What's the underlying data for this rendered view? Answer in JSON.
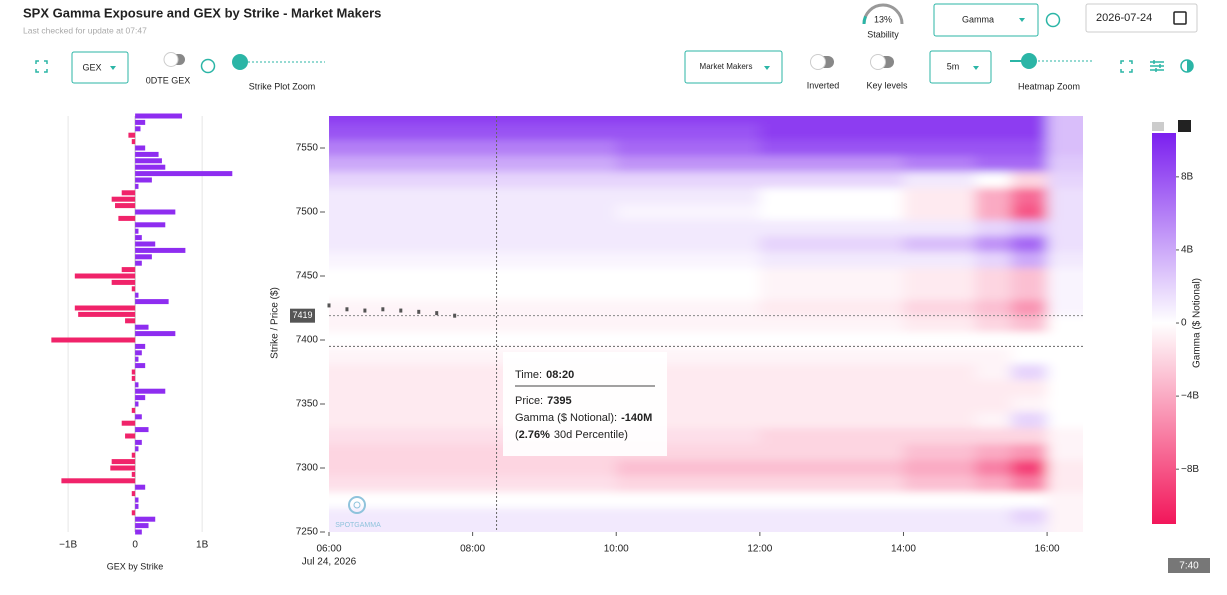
{
  "header": {
    "title": "SPX Gamma Exposure and GEX by Strike - Market Makers",
    "subtitle": "Last checked for update at 07:47"
  },
  "stability": {
    "value": 13,
    "label": "13%",
    "caption": "Stability",
    "color": "#2bb5a6"
  },
  "controls": {
    "metric": "Gamma",
    "date": "2026-07-24",
    "gex_select": "GEX",
    "odte_label": "0DTE GEX",
    "strike_zoom": "Strike Plot Zoom",
    "group_select": "Market Makers",
    "inverted": "Inverted",
    "key_levels": "Key levels",
    "interval": "5m",
    "heatmap_zoom": "Heatmap Zoom"
  },
  "gex_chart": {
    "type": "bar",
    "xlabel": "GEX by Strike",
    "positive_color": "#8e2df0",
    "negative_color": "#f0236a",
    "xlim": [
      -1.3,
      1.55
    ],
    "xticks": [
      {
        "value": -1,
        "label": "−1B"
      },
      0,
      {
        "value": 1,
        "label": "1B"
      }
    ],
    "ylim": [
      7250,
      7575
    ],
    "grid": true,
    "strikes": [
      7575,
      7570,
      7565,
      7560,
      7555,
      7550,
      7545,
      7540,
      7535,
      7530,
      7525,
      7520,
      7515,
      7510,
      7505,
      7500,
      7495,
      7490,
      7485,
      7480,
      7475,
      7470,
      7465,
      7460,
      7455,
      7450,
      7445,
      7440,
      7435,
      7430,
      7425,
      7420,
      7415,
      7410,
      7405,
      7400,
      7395,
      7390,
      7385,
      7380,
      7375,
      7370,
      7365,
      7360,
      7355,
      7350,
      7345,
      7340,
      7335,
      7330,
      7325,
      7320,
      7315,
      7310,
      7305,
      7300,
      7295,
      7290,
      7285,
      7280,
      7275,
      7270,
      7265,
      7260,
      7255,
      7250
    ],
    "values": [
      0.7,
      0.15,
      0.08,
      -0.1,
      -0.05,
      0.15,
      0.35,
      0.4,
      0.45,
      1.45,
      0.25,
      0.05,
      -0.2,
      -0.35,
      -0.3,
      0.6,
      -0.25,
      0.45,
      0.05,
      0.1,
      0.3,
      0.75,
      0.25,
      0.1,
      -0.2,
      -0.9,
      -0.35,
      -0.05,
      0.05,
      0.5,
      -0.9,
      -0.85,
      -0.15,
      0.2,
      0.6,
      -1.25,
      0.15,
      0.1,
      0.05,
      0.15,
      -0.05,
      -0.05,
      0.05,
      0.45,
      0.15,
      0.05,
      -0.05,
      0.1,
      -0.2,
      0.2,
      -0.15,
      0.1,
      0.05,
      -0.05,
      -0.35,
      -0.37,
      -0.05,
      -1.1,
      0.15,
      -0.05,
      0.05,
      0.05,
      -0.05,
      0.3,
      0.2,
      0.1
    ]
  },
  "heatmap": {
    "type": "heatmap",
    "ylabel": "Strike / Price ($)",
    "date": "Jul 24, 2026",
    "xlim": [
      360,
      990
    ],
    "xticks": [
      {
        "value": 360,
        "label": "06:00"
      },
      {
        "value": 480,
        "label": "08:00"
      },
      {
        "value": 600,
        "label": "10:00"
      },
      {
        "value": 720,
        "label": "12:00"
      },
      {
        "value": 840,
        "label": "14:00"
      },
      {
        "value": 960,
        "label": "16:00"
      }
    ],
    "ylim": [
      7250,
      7575
    ],
    "yticks": [
      7250,
      7300,
      7350,
      7400,
      7450,
      7500,
      7550
    ],
    "times": [
      360,
      480,
      600,
      720,
      840,
      900,
      930,
      960
    ],
    "strikes": [
      7575,
      7562.5,
      7550,
      7537.5,
      7525,
      7512.5,
      7500,
      7487.5,
      7475,
      7462.5,
      7450,
      7437.5,
      7425,
      7412.5,
      7400,
      7387.5,
      7375,
      7362.5,
      7350,
      7337.5,
      7325,
      7312.5,
      7300,
      7287.5,
      7275,
      7262.5,
      7250
    ],
    "values": [
      [
        9,
        9,
        9,
        9,
        9,
        9,
        9,
        3
      ],
      [
        8,
        8,
        8,
        9,
        9,
        9,
        9,
        3
      ],
      [
        6,
        6,
        7,
        8,
        8,
        8,
        8,
        3
      ],
      [
        4,
        4,
        5,
        5,
        6,
        7,
        7,
        2.5
      ],
      [
        2,
        2,
        2,
        2,
        1,
        0,
        -2,
        2
      ],
      [
        1,
        1,
        1,
        0,
        -1,
        -4,
        -7,
        1.5
      ],
      [
        1,
        1,
        0.5,
        0,
        -1,
        -4,
        -8,
        1.5
      ],
      [
        1,
        1,
        1,
        1,
        1,
        2,
        3,
        1.5
      ],
      [
        1,
        1,
        1,
        2,
        3,
        5,
        7,
        1.5
      ],
      [
        0.5,
        0.5,
        0.5,
        1,
        1,
        2,
        4,
        1
      ],
      [
        0,
        0,
        0,
        -0.5,
        -1,
        -2,
        -3,
        0.5
      ],
      [
        0,
        0,
        0,
        -0.5,
        -1,
        -2,
        -3,
        0.5
      ],
      [
        -0.5,
        -0.5,
        -0.5,
        -1,
        -2,
        -3,
        -5,
        0.5
      ],
      [
        -0.5,
        -0.5,
        -0.5,
        -0.5,
        -1,
        -2,
        -3,
        0
      ],
      [
        0,
        0,
        0,
        0,
        0,
        0,
        0,
        0
      ],
      [
        -0.5,
        -0.5,
        -0.5,
        -0.5,
        -0.5,
        -0.5,
        0,
        0
      ],
      [
        -1,
        -1,
        -1,
        -1,
        -1,
        -0.5,
        2,
        0
      ],
      [
        -1,
        -1,
        -1,
        -1,
        -1,
        -1,
        -1,
        0
      ],
      [
        -1,
        -1,
        -1,
        -1,
        -1,
        -1,
        -0.5,
        0
      ],
      [
        -1,
        -1,
        -1,
        -1,
        -1,
        -0.5,
        2,
        0
      ],
      [
        -1.5,
        -1.5,
        -1.5,
        -2,
        -2,
        -2,
        -2,
        -0.5
      ],
      [
        -2,
        -2,
        -2,
        -2,
        -3,
        -4,
        -5,
        -0.5
      ],
      [
        -2,
        -2,
        -3,
        -3,
        -4,
        -6,
        -9,
        -1
      ],
      [
        -1.5,
        -1.5,
        -2,
        -2,
        -3,
        -4,
        -6,
        -1
      ],
      [
        0,
        0,
        0,
        0,
        0,
        0,
        0,
        -0.5
      ],
      [
        1,
        1,
        1,
        1,
        1,
        1,
        2,
        -0.5
      ],
      [
        1,
        1,
        1,
        1,
        1,
        1,
        1,
        -0.5
      ]
    ],
    "positive_color": "#7b1fef",
    "negative_color": "#f2165a",
    "colorbar": {
      "label": "Gamma ($ Notional)",
      "clim": [
        -11,
        10.4
      ],
      "ticks": [
        {
          "value": 8,
          "label": "8B"
        },
        {
          "value": 4,
          "label": "4B"
        },
        0,
        {
          "value": -4,
          "label": "−4B"
        },
        {
          "value": -8,
          "label": "−8B"
        }
      ]
    },
    "price": {
      "x": [
        360,
        375,
        390,
        405,
        420,
        435,
        450,
        465
      ],
      "values": [
        7427,
        7424,
        7423,
        7424,
        7423,
        7422,
        7421,
        7419
      ]
    },
    "current_price": 7419,
    "crosshair": {
      "x": {
        "value": 500,
        "label": "08:20"
      },
      "y": 7395
    }
  },
  "tooltip": {
    "time_label": "Time:",
    "price_label": "Price:",
    "gamma_label": "Gamma ($ Notional):",
    "gamma": "-140M",
    "percentile_open": "(",
    "percentile": "2.76%",
    "percentile_suffix": "30d Percentile)"
  },
  "watermark": "SPOTGAMMA",
  "clock": "7:40"
}
